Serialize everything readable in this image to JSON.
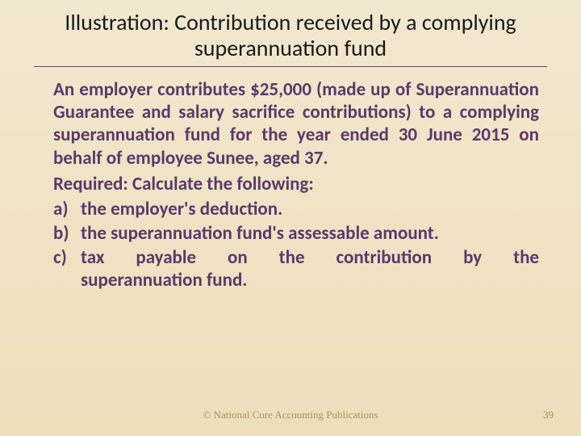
{
  "colors": {
    "background_top": "#f2e8d0",
    "background_bottom": "#eedfba",
    "title_color": "#1a1a1a",
    "body_color": "#5a3a6a",
    "footer_color": "#b09058",
    "rule_color": "#555555"
  },
  "typography": {
    "title_fontsize": 28,
    "body_fontsize": 23,
    "footer_fontsize": 13,
    "body_weight": "bold"
  },
  "title": "Illustration:  Contribution received by a complying superannuation fund",
  "body": {
    "paragraph1": "An employer contributes $25,000 (made up of Superannuation Guarantee and salary sacrifice contributions) to a complying superannuation fund for the year ended 30 June 2015 on behalf of employee Sunee, aged 37.",
    "required_label": "Required:  Calculate the following:",
    "items": [
      {
        "marker": "a)",
        "text": "the employer's deduction."
      },
      {
        "marker": "b)",
        "text": "the superannuation fund's assessable amount."
      },
      {
        "marker": "c)",
        "text_line1": "tax payable on the contribution by the",
        "text_line2": "superannuation fund."
      }
    ]
  },
  "footer": {
    "copyright": "© National Core Accounting Publications",
    "page_number": "39"
  }
}
